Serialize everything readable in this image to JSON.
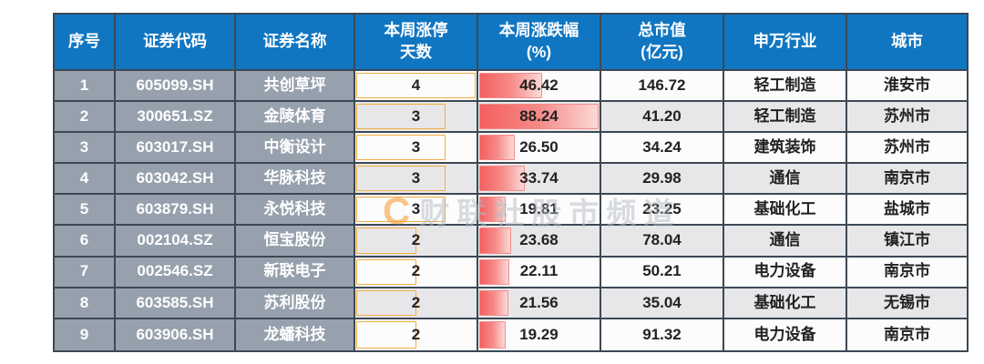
{
  "table": {
    "columns": [
      {
        "key": "index",
        "label": "序号"
      },
      {
        "key": "code",
        "label": "证券代码"
      },
      {
        "key": "name",
        "label": "证券名称"
      },
      {
        "key": "limit_up_days",
        "label": "本周涨停\n天数"
      },
      {
        "key": "weekly_change",
        "label": "本周涨跌幅\n(%)"
      },
      {
        "key": "market_cap",
        "label": "总市值\n(亿元)"
      },
      {
        "key": "industry",
        "label": "申万行业"
      },
      {
        "key": "city",
        "label": "城市"
      }
    ],
    "rows": [
      {
        "index": "1",
        "code": "605099.SH",
        "name": "共创草坪",
        "limit_up_days": 4,
        "weekly_change": "46.42",
        "market_cap": "146.72",
        "industry": "轻工制造",
        "city": "淮安市"
      },
      {
        "index": "2",
        "code": "300651.SZ",
        "name": "金陵体育",
        "limit_up_days": 3,
        "weekly_change": "88.24",
        "market_cap": "41.20",
        "industry": "轻工制造",
        "city": "苏州市"
      },
      {
        "index": "3",
        "code": "603017.SH",
        "name": "中衡设计",
        "limit_up_days": 3,
        "weekly_change": "26.50",
        "market_cap": "34.24",
        "industry": "建筑装饰",
        "city": "苏州市"
      },
      {
        "index": "4",
        "code": "603042.SH",
        "name": "华脉科技",
        "limit_up_days": 3,
        "weekly_change": "33.74",
        "market_cap": "29.98",
        "industry": "通信",
        "city": "南京市"
      },
      {
        "index": "5",
        "code": "603879.SH",
        "name": "永悦科技",
        "limit_up_days": 3,
        "weekly_change": "19.81",
        "market_cap": "23.25",
        "industry": "基础化工",
        "city": "盐城市"
      },
      {
        "index": "6",
        "code": "002104.SZ",
        "name": "恒宝股份",
        "limit_up_days": 2,
        "weekly_change": "23.68",
        "market_cap": "78.04",
        "industry": "通信",
        "city": "镇江市"
      },
      {
        "index": "7",
        "code": "002546.SZ",
        "name": "新联电子",
        "limit_up_days": 2,
        "weekly_change": "22.11",
        "market_cap": "50.21",
        "industry": "电力设备",
        "city": "南京市"
      },
      {
        "index": "8",
        "code": "603585.SH",
        "name": "苏利股份",
        "limit_up_days": 2,
        "weekly_change": "21.56",
        "market_cap": "35.04",
        "industry": "基础化工",
        "city": "无锡市"
      },
      {
        "index": "9",
        "code": "603906.SH",
        "name": "龙蟠科技",
        "limit_up_days": 2,
        "weekly_change": "19.29",
        "market_cap": "91.32",
        "industry": "电力设备",
        "city": "南京市"
      }
    ],
    "bar_scales": {
      "limit_up_days_max": 4,
      "weekly_change_max": 88.24
    }
  },
  "watermark": {
    "logo": "C",
    "text": "财联社股市频道"
  },
  "colors": {
    "header_bg": "#1176c1",
    "left_column_bg": "#96a1ad",
    "stripe_gray": "#e7e7e9",
    "row_white": "#fcfcfc",
    "border": "#3d4855",
    "bar_orange": "#f6a41f",
    "bar_red": "#f4605f"
  },
  "chart_data": {
    "type": "table",
    "title": "",
    "columns": [
      "序号",
      "证券代码",
      "证券名称",
      "本周涨停天数",
      "本周涨跌幅(%)",
      "总市值(亿元)",
      "申万行业",
      "城市"
    ],
    "rows": [
      [
        1,
        "605099.SH",
        "共创草坪",
        4,
        46.42,
        146.72,
        "轻工制造",
        "淮安市"
      ],
      [
        2,
        "300651.SZ",
        "金陵体育",
        3,
        88.24,
        41.2,
        "轻工制造",
        "苏州市"
      ],
      [
        3,
        "603017.SH",
        "中衡设计",
        3,
        26.5,
        34.24,
        "建筑装饰",
        "苏州市"
      ],
      [
        4,
        "603042.SH",
        "华脉科技",
        3,
        33.74,
        29.98,
        "通信",
        "南京市"
      ],
      [
        5,
        "603879.SH",
        "永悦科技",
        3,
        19.81,
        23.25,
        "基础化工",
        "盐城市"
      ],
      [
        6,
        "002104.SZ",
        "恒宝股份",
        2,
        23.68,
        78.04,
        "通信",
        "镇江市"
      ],
      [
        7,
        "002546.SZ",
        "新联电子",
        2,
        22.11,
        50.21,
        "电力设备",
        "南京市"
      ],
      [
        8,
        "603585.SH",
        "苏利股份",
        2,
        21.56,
        35.04,
        "基础化工",
        "无锡市"
      ],
      [
        9,
        "603906.SH",
        "龙蟠科技",
        2,
        19.29,
        91.32,
        "电力设备",
        "南京市"
      ]
    ],
    "conditional_formatting": [
      {
        "column": "本周涨停天数",
        "style": "data-bar",
        "color": "orange-gradient",
        "scale_max": 4
      },
      {
        "column": "本周涨跌幅(%)",
        "style": "data-bar",
        "color": "red-gradient",
        "scale_max": 88.24
      }
    ],
    "layout_hints": {
      "header_bg": "blue",
      "first_three_columns_bg": "gray-blue",
      "zebra_stripes": true
    }
  }
}
